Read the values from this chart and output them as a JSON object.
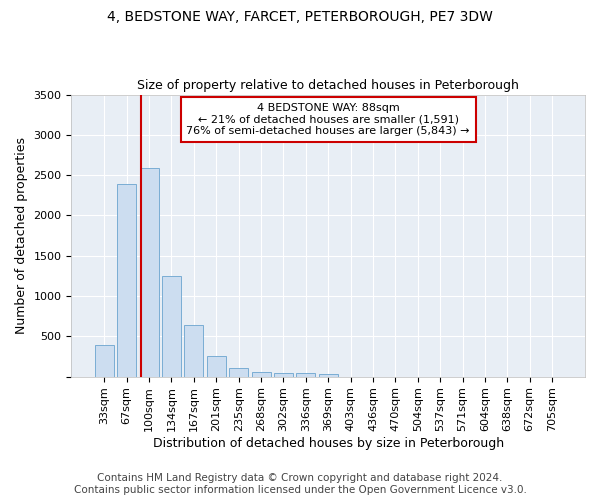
{
  "title": "4, BEDSTONE WAY, FARCET, PETERBOROUGH, PE7 3DW",
  "subtitle": "Size of property relative to detached houses in Peterborough",
  "xlabel": "Distribution of detached houses by size in Peterborough",
  "ylabel": "Number of detached properties",
  "categories": [
    "33sqm",
    "67sqm",
    "100sqm",
    "134sqm",
    "167sqm",
    "201sqm",
    "235sqm",
    "268sqm",
    "302sqm",
    "336sqm",
    "369sqm",
    "403sqm",
    "436sqm",
    "470sqm",
    "504sqm",
    "537sqm",
    "571sqm",
    "604sqm",
    "638sqm",
    "672sqm",
    "705sqm"
  ],
  "values": [
    390,
    2390,
    2590,
    1250,
    640,
    255,
    105,
    57,
    52,
    47,
    30,
    0,
    0,
    0,
    0,
    0,
    0,
    0,
    0,
    0,
    0
  ],
  "bar_color": "#ccddf0",
  "bar_edge_color": "#7aadd4",
  "vline_color": "#cc0000",
  "annotation_text": "4 BEDSTONE WAY: 88sqm\n← 21% of detached houses are smaller (1,591)\n76% of semi-detached houses are larger (5,843) →",
  "annotation_box_color": "white",
  "annotation_box_edge_color": "#cc0000",
  "ylim": [
    0,
    3500
  ],
  "yticks": [
    0,
    500,
    1000,
    1500,
    2000,
    2500,
    3000,
    3500
  ],
  "fig_bg_color": "#ffffff",
  "plot_bg_color": "#e8eef5",
  "title_fontsize": 10,
  "subtitle_fontsize": 9,
  "axis_label_fontsize": 9,
  "tick_fontsize": 8,
  "footer_fontsize": 7.5,
  "footer": "Contains HM Land Registry data © Crown copyright and database right 2024.\nContains public sector information licensed under the Open Government Licence v3.0."
}
